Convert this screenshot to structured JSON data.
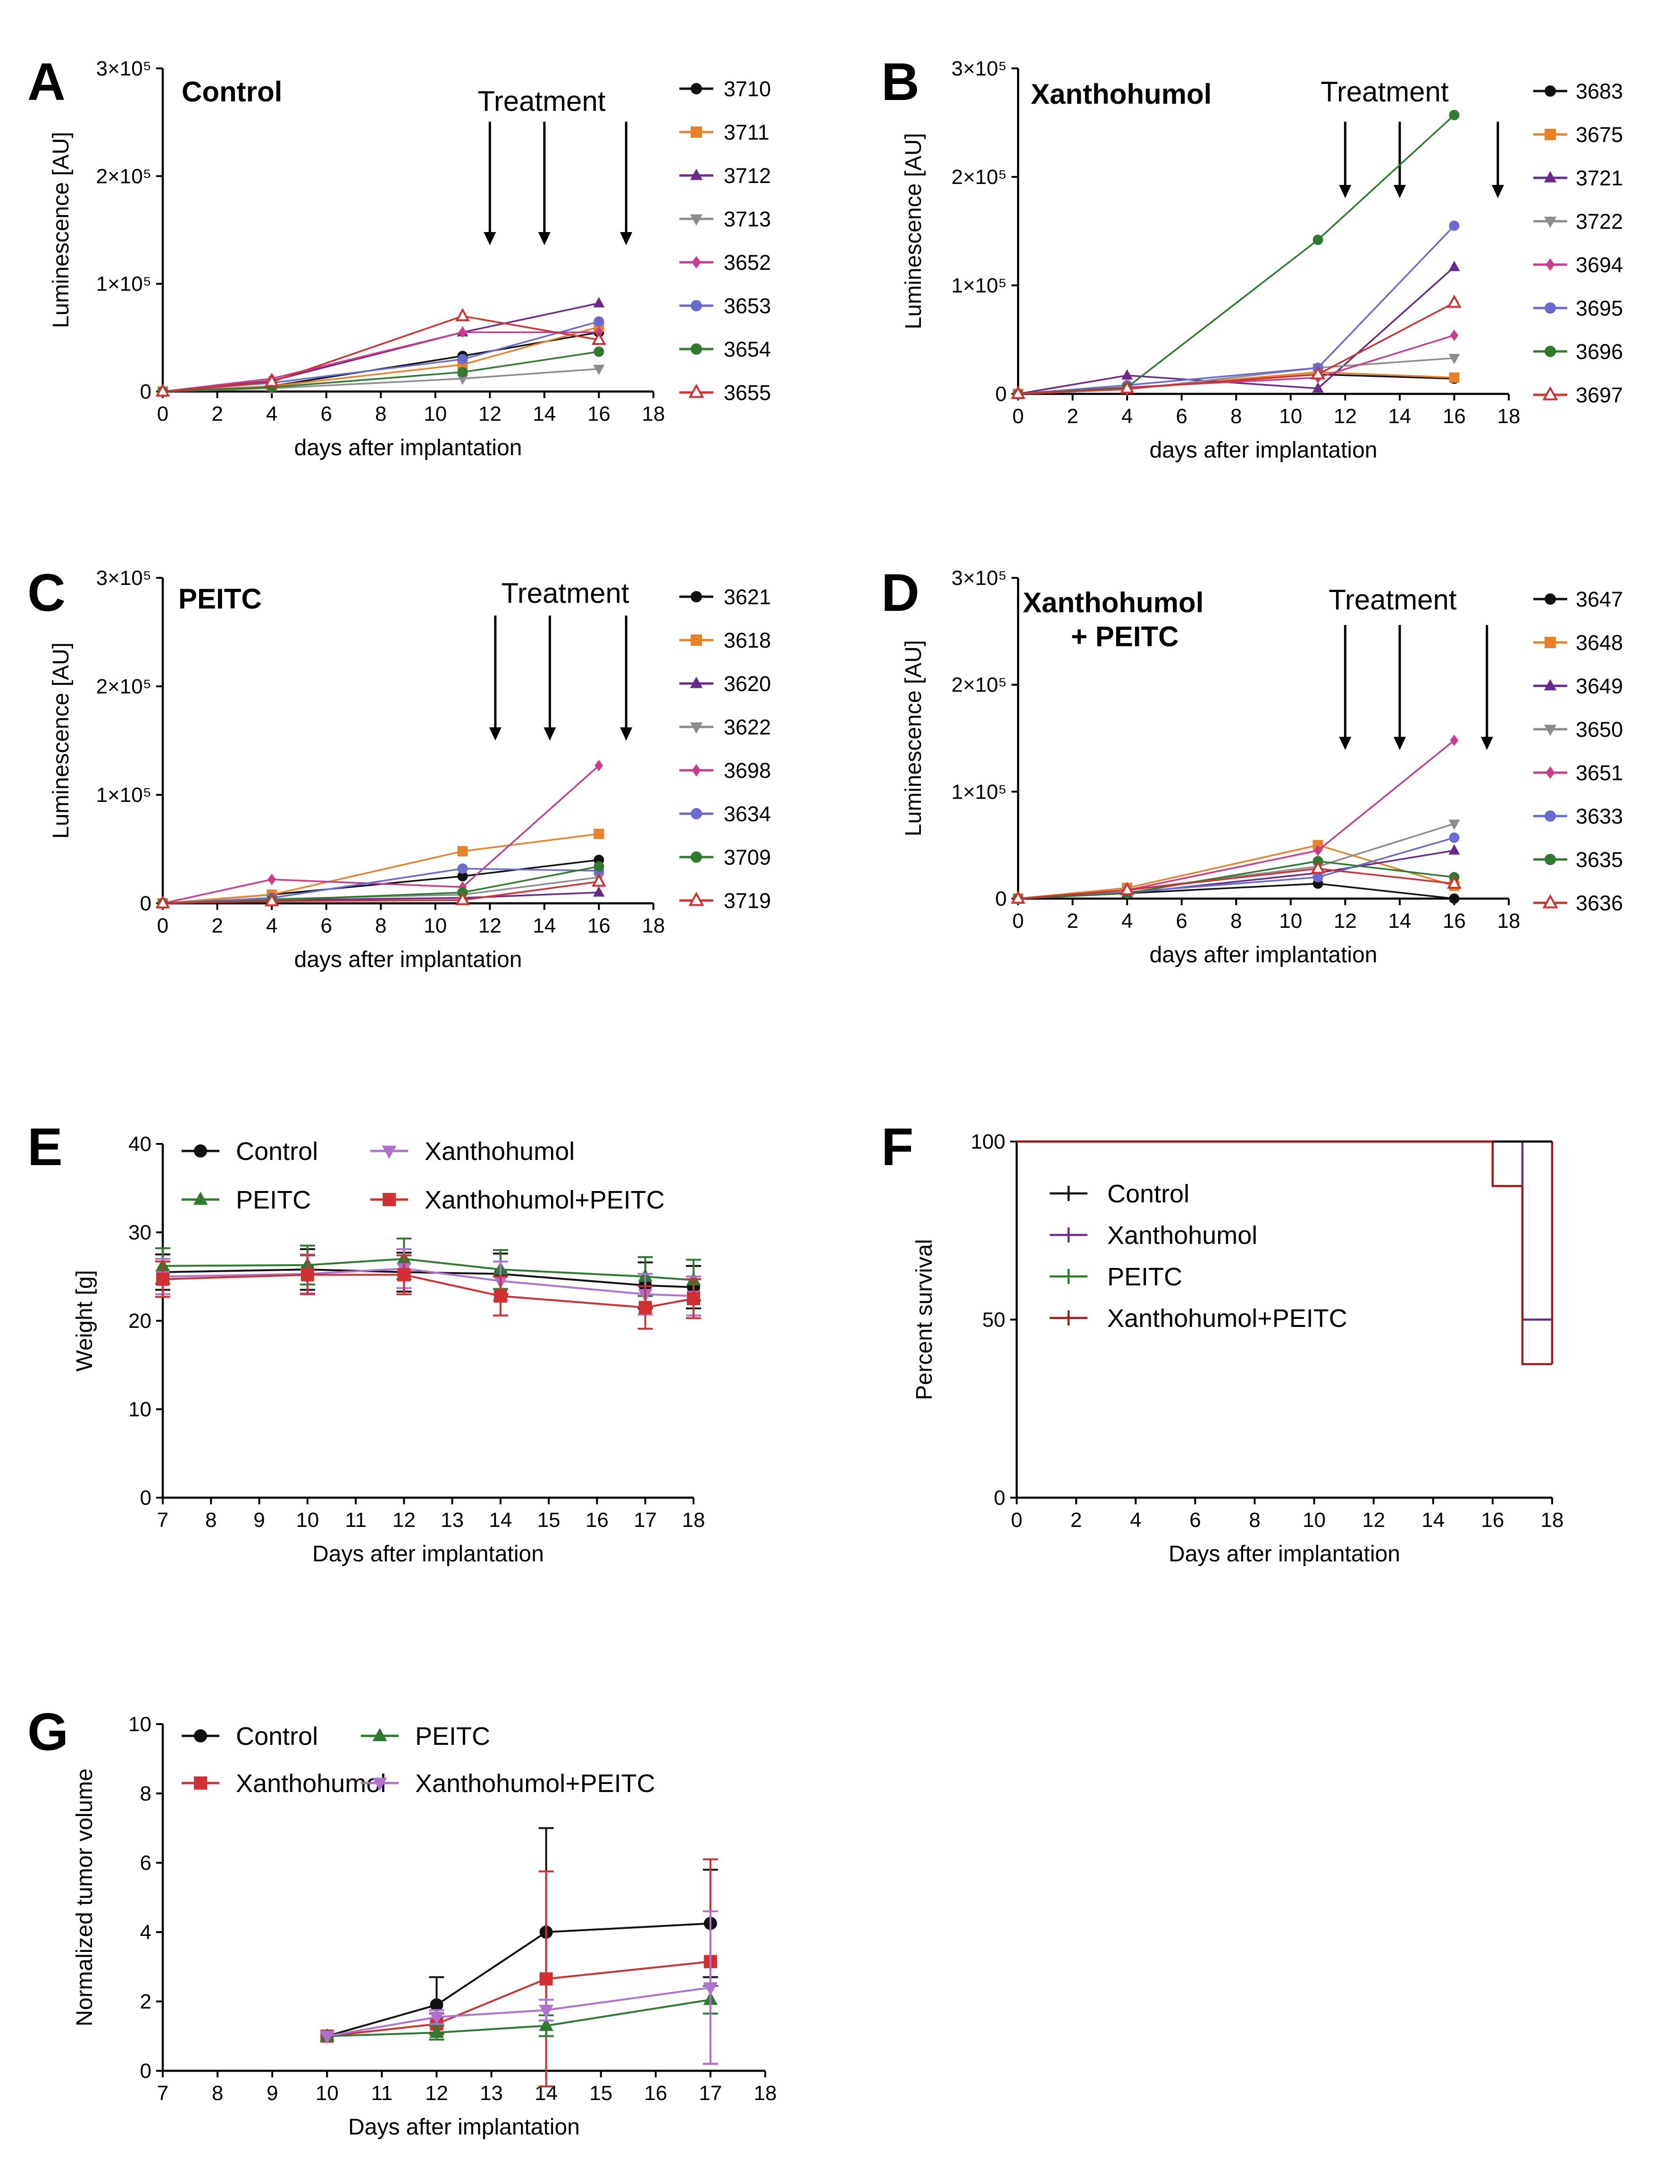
{
  "colors": {
    "black": "#111111",
    "orange": "#e8822a",
    "purple": "#6a2a8c",
    "gray": "#8c8c8c",
    "pink": "#cc3c8c",
    "blue": "#6a6ad0",
    "green": "#2e7a2e",
    "red": "#d23030",
    "lightpurple": "#b070d0",
    "darkred": "#a01a1a"
  },
  "chart_data": [
    {
      "panel": "A",
      "type": "line",
      "title": "Control",
      "annotation": "Treatment",
      "treatment_days": [
        12,
        14,
        17
      ],
      "xlabel": "days after implantation",
      "ylabel": "Luminescence [AU]",
      "xlim": [
        0,
        18
      ],
      "xticks": [
        "0",
        "2",
        "4",
        "6",
        "8",
        "10",
        "12",
        "14",
        "16",
        "18"
      ],
      "ylim": [
        0,
        300000
      ],
      "yticks": [
        0,
        100000,
        200000,
        300000
      ],
      "ytick_labels": [
        "0",
        "1×10⁵",
        "2×10⁵",
        "3×10⁵"
      ],
      "x": [
        0,
        4,
        11,
        16
      ],
      "series": [
        {
          "name": "3710",
          "color": "black",
          "marker": "circle",
          "values": [
            0,
            5000,
            33000,
            55000
          ]
        },
        {
          "name": "3711",
          "color": "orange",
          "marker": "square",
          "values": [
            0,
            5000,
            25000,
            60000
          ]
        },
        {
          "name": "3712",
          "color": "purple",
          "marker": "triangle",
          "values": [
            0,
            10000,
            55000,
            82000
          ]
        },
        {
          "name": "3713",
          "color": "gray",
          "marker": "tridown",
          "values": [
            0,
            3000,
            12000,
            21000
          ]
        },
        {
          "name": "3652",
          "color": "pink",
          "marker": "diamond",
          "values": [
            0,
            12000,
            55000,
            55000
          ]
        },
        {
          "name": "3653",
          "color": "blue",
          "marker": "circle",
          "values": [
            0,
            8000,
            30000,
            65000
          ]
        },
        {
          "name": "3654",
          "color": "green",
          "marker": "circle",
          "values": [
            0,
            4000,
            18000,
            37000
          ]
        },
        {
          "name": "3655",
          "color": "red",
          "marker": "open-triangle",
          "values": [
            0,
            9000,
            70000,
            48000
          ]
        }
      ]
    },
    {
      "panel": "B",
      "type": "line",
      "title": "Xanthohumol",
      "annotation": "Treatment",
      "treatment_days": [
        12,
        14,
        17.6
      ],
      "xlabel": "days after implantation",
      "ylabel": "Luminescence [AU]",
      "xlim": [
        0,
        18
      ],
      "xticks": [
        "0",
        "2",
        "4",
        "6",
        "8",
        "10",
        "12",
        "14",
        "16",
        "18"
      ],
      "ylim": [
        0,
        300000
      ],
      "yticks": [
        0,
        100000,
        200000,
        300000
      ],
      "ytick_labels": [
        "0",
        "1×10⁵",
        "2×10⁵",
        "3×10⁵"
      ],
      "x": [
        0,
        4,
        11,
        16
      ],
      "series": [
        {
          "name": "3683",
          "color": "black",
          "marker": "circle",
          "values": [
            0,
            5000,
            18000,
            14000
          ]
        },
        {
          "name": "3675",
          "color": "orange",
          "marker": "square",
          "values": [
            0,
            5000,
            20000,
            15000
          ]
        },
        {
          "name": "3721",
          "color": "purple",
          "marker": "triangle",
          "values": [
            0,
            17000,
            5000,
            117000
          ]
        },
        {
          "name": "3722",
          "color": "gray",
          "marker": "tridown",
          "values": [
            0,
            4000,
            24000,
            33000
          ]
        },
        {
          "name": "3694",
          "color": "pink",
          "marker": "diamond",
          "values": [
            0,
            6000,
            15000,
            54000
          ]
        },
        {
          "name": "3695",
          "color": "blue",
          "marker": "circle",
          "values": [
            0,
            8000,
            24000,
            155000
          ]
        },
        {
          "name": "3696",
          "color": "green",
          "marker": "circle",
          "values": [
            0,
            6000,
            142000,
            257000
          ]
        },
        {
          "name": "3697",
          "color": "red",
          "marker": "open-triangle",
          "values": [
            0,
            5000,
            18000,
            84000
          ]
        }
      ]
    },
    {
      "panel": "C",
      "type": "line",
      "title": "PEITC",
      "annotation": "Treatment",
      "treatment_days": [
        12.2,
        14.2,
        17
      ],
      "xlabel": "days after implantation",
      "ylabel": "Luminescence [AU]",
      "xlim": [
        0,
        18
      ],
      "xticks": [
        "0",
        "2",
        "4",
        "6",
        "8",
        "10",
        "12",
        "14",
        "16",
        "18"
      ],
      "ylim": [
        0,
        300000
      ],
      "yticks": [
        0,
        100000,
        200000,
        300000
      ],
      "ytick_labels": [
        "0",
        "1×10⁵",
        "2×10⁵",
        "3×10⁵"
      ],
      "x": [
        0,
        4,
        11,
        16
      ],
      "series": [
        {
          "name": "3621",
          "color": "black",
          "marker": "circle",
          "values": [
            0,
            8000,
            25000,
            40000
          ]
        },
        {
          "name": "3618",
          "color": "orange",
          "marker": "square",
          "values": [
            0,
            8000,
            48000,
            64000
          ]
        },
        {
          "name": "3620",
          "color": "purple",
          "marker": "triangle",
          "values": [
            0,
            3000,
            5000,
            10000
          ]
        },
        {
          "name": "3622",
          "color": "gray",
          "marker": "tridown",
          "values": [
            0,
            4000,
            8000,
            24000
          ]
        },
        {
          "name": "3698",
          "color": "pink",
          "marker": "diamond",
          "values": [
            0,
            22000,
            15000,
            127000
          ]
        },
        {
          "name": "3634",
          "color": "blue",
          "marker": "circle",
          "values": [
            0,
            5000,
            32000,
            30000
          ]
        },
        {
          "name": "3709",
          "color": "green",
          "marker": "circle",
          "values": [
            0,
            3000,
            10000,
            34000
          ]
        },
        {
          "name": "3719",
          "color": "red",
          "marker": "open-triangle",
          "values": [
            0,
            2000,
            3000,
            20000
          ]
        }
      ]
    },
    {
      "panel": "D",
      "type": "line",
      "title": "Xanthohumol",
      "title2": "+ PEITC",
      "annotation": "Treatment",
      "treatment_days": [
        12,
        14,
        17.2
      ],
      "xlabel": "days after implantation",
      "ylabel": "Luminescence [AU]",
      "xlim": [
        0,
        18
      ],
      "xticks": [
        "0",
        "2",
        "4",
        "6",
        "8",
        "10",
        "12",
        "14",
        "16",
        "18"
      ],
      "ylim": [
        0,
        300000
      ],
      "yticks": [
        0,
        100000,
        200000,
        300000
      ],
      "ytick_labels": [
        "0",
        "1×10⁵",
        "2×10⁵",
        "3×10⁵"
      ],
      "x": [
        0,
        4,
        11,
        16
      ],
      "series": [
        {
          "name": "3647",
          "color": "black",
          "marker": "circle",
          "values": [
            0,
            5000,
            14000,
            0
          ]
        },
        {
          "name": "3648",
          "color": "orange",
          "marker": "square",
          "values": [
            0,
            10000,
            50000,
            12000
          ]
        },
        {
          "name": "3649",
          "color": "purple",
          "marker": "triangle",
          "values": [
            0,
            5000,
            24000,
            45000
          ]
        },
        {
          "name": "3650",
          "color": "gray",
          "marker": "tridown",
          "values": [
            0,
            8000,
            30000,
            70000
          ]
        },
        {
          "name": "3651",
          "color": "pink",
          "marker": "diamond",
          "values": [
            0,
            8000,
            45000,
            148000
          ]
        },
        {
          "name": "3633",
          "color": "blue",
          "marker": "circle",
          "values": [
            0,
            6000,
            20000,
            57000
          ]
        },
        {
          "name": "3635",
          "color": "green",
          "marker": "circle",
          "values": [
            0,
            5000,
            35000,
            20000
          ]
        },
        {
          "name": "3636",
          "color": "red",
          "marker": "open-triangle",
          "values": [
            0,
            8000,
            28000,
            14000
          ]
        }
      ]
    },
    {
      "panel": "E",
      "type": "line",
      "title": "",
      "xlabel": "Days after implantation",
      "ylabel": "Weight [g]",
      "xlim": [
        7,
        18
      ],
      "xticks": [
        "7",
        "8",
        "9",
        "10",
        "11",
        "12",
        "13",
        "14",
        "15",
        "16",
        "17",
        "18"
      ],
      "ylim": [
        0,
        40
      ],
      "yticks": [
        0,
        10,
        20,
        30,
        40
      ],
      "ytick_labels": [
        "0",
        "10",
        "20",
        "30",
        "40"
      ],
      "x": [
        7,
        10,
        12,
        14,
        17,
        18
      ],
      "series": [
        {
          "name": "Control",
          "color": "black",
          "marker": "circle",
          "values": [
            25.5,
            25.8,
            25.5,
            25.3,
            24.0,
            23.8
          ],
          "errors": [
            2,
            2.3,
            2.2,
            2.3,
            2.6,
            2.4
          ]
        },
        {
          "name": "PEITC",
          "color": "green",
          "marker": "triangle",
          "values": [
            26.2,
            26.3,
            27.0,
            25.8,
            25.0,
            24.6
          ],
          "errors": [
            2,
            2.2,
            2.3,
            2.2,
            2.2,
            2.3
          ]
        },
        {
          "name": "Xanthohumol",
          "color": "lightpurple",
          "marker": "tridown",
          "values": [
            25.0,
            25.3,
            25.9,
            24.5,
            23.0,
            22.8
          ],
          "errors": [
            2,
            2.2,
            2.2,
            2.2,
            2.3,
            2.2
          ]
        },
        {
          "name": "Xanthohumol+PEITC",
          "color": "red",
          "marker": "square",
          "values": [
            24.7,
            25.2,
            25.2,
            22.8,
            21.5,
            22.5
          ],
          "errors": [
            2,
            2.2,
            2.2,
            2.2,
            2.4,
            2.2
          ]
        }
      ]
    },
    {
      "panel": "F",
      "type": "line",
      "title": "",
      "xlabel": "Days after implantation",
      "ylabel": "Percent survival",
      "xlim": [
        0,
        18
      ],
      "xticks": [
        "0",
        "2",
        "4",
        "6",
        "8",
        "10",
        "12",
        "14",
        "16",
        "18"
      ],
      "ylim": [
        0,
        100
      ],
      "yticks": [
        0,
        50,
        100
      ],
      "ytick_labels": [
        "0",
        "50",
        "100"
      ],
      "series": [
        {
          "name": "Control",
          "color": "black",
          "steps": [
            [
              0,
              100
            ],
            [
              18,
              100
            ]
          ]
        },
        {
          "name": "Xanthohumol",
          "color": "purple",
          "steps": [
            [
              0,
              100
            ],
            [
              17,
              100
            ],
            [
              17,
              50
            ],
            [
              18,
              50
            ]
          ]
        },
        {
          "name": "PEITC",
          "color": "green",
          "steps": [
            [
              0,
              100
            ],
            [
              18,
              100
            ]
          ]
        },
        {
          "name": "Xanthohumol+PEITC",
          "color": "darkred",
          "steps": [
            [
              0,
              100
            ],
            [
              16,
              100
            ],
            [
              16,
              87.5
            ],
            [
              17,
              87.5
            ],
            [
              17,
              37.5
            ],
            [
              18,
              37.5
            ]
          ]
        }
      ]
    },
    {
      "panel": "G",
      "type": "line",
      "title": "",
      "xlabel": "Days after implantation",
      "ylabel": "Normalized tumor volume",
      "xlim": [
        7,
        18
      ],
      "xticks": [
        "7",
        "8",
        "9",
        "10",
        "11",
        "12",
        "13",
        "14",
        "15",
        "16",
        "17",
        "18"
      ],
      "ylim": [
        0,
        10
      ],
      "yticks": [
        0,
        2,
        4,
        6,
        8,
        10
      ],
      "ytick_labels": [
        "0",
        "2",
        "4",
        "6",
        "8",
        "10"
      ],
      "x": [
        10,
        12,
        14,
        17
      ],
      "series": [
        {
          "name": "Control",
          "color": "black",
          "marker": "circle",
          "values": [
            1.0,
            1.9,
            4.0,
            4.25
          ],
          "errors": [
            0,
            0.8,
            3.0,
            1.55
          ]
        },
        {
          "name": "Xanthohumol",
          "color": "red",
          "marker": "square",
          "values": [
            1.0,
            1.35,
            2.65,
            3.15
          ],
          "errors": [
            0,
            0.3,
            3.1,
            2.95
          ]
        },
        {
          "name": "PEITC",
          "color": "green",
          "marker": "triangle",
          "values": [
            1.0,
            1.1,
            1.3,
            2.05
          ],
          "errors": [
            0,
            0.2,
            0.3,
            0.4
          ]
        },
        {
          "name": "Xanthohumol+PEITC",
          "color": "lightpurple",
          "marker": "tridown",
          "values": [
            1.0,
            1.55,
            1.75,
            2.4
          ],
          "errors": [
            0,
            0.2,
            0.3,
            2.2
          ]
        }
      ]
    }
  ]
}
